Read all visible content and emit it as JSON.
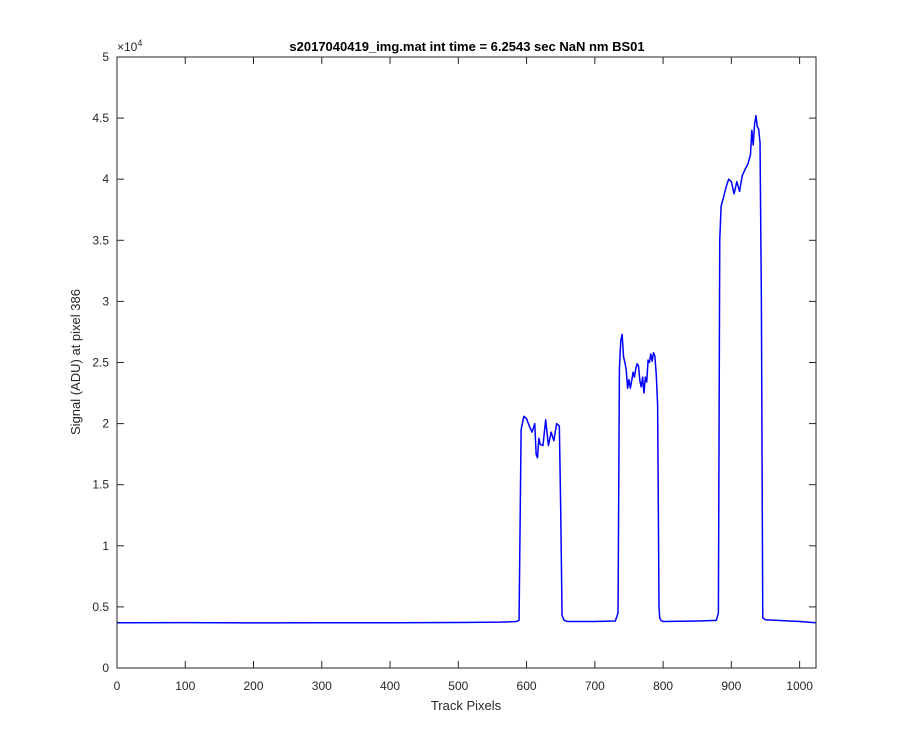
{
  "chart_data": {
    "type": "line",
    "title": "s2017040419_img.mat int time = 6.2543 sec  NaN nm BS01",
    "xlabel": "Track Pixels",
    "ylabel": "Signal (ADU) at pixel 386",
    "y_exponent_label": "×10",
    "y_exponent_power": "4",
    "xlim": [
      0,
      1024
    ],
    "ylim": [
      0,
      50000
    ],
    "xticks": [
      0,
      100,
      200,
      300,
      400,
      500,
      600,
      700,
      800,
      900,
      1000
    ],
    "xtick_labels": [
      "0",
      "100",
      "200",
      "300",
      "400",
      "500",
      "600",
      "700",
      "800",
      "900",
      "1000"
    ],
    "yticks": [
      0,
      5000,
      10000,
      15000,
      20000,
      25000,
      30000,
      35000,
      40000,
      45000,
      50000
    ],
    "ytick_labels": [
      "0",
      "0.5",
      "1",
      "1.5",
      "2",
      "2.5",
      "3",
      "3.5",
      "4",
      "4.5",
      "5"
    ],
    "grid": false,
    "line_color": "#0000ff",
    "series": [
      {
        "x": [
          0,
          100,
          200,
          300,
          400,
          500,
          560,
          585,
          589,
          592,
          596,
          600,
          604,
          608,
          612,
          614,
          616,
          618,
          620,
          624,
          628,
          632,
          636,
          640,
          644,
          648,
          650,
          652,
          655,
          660,
          700,
          730,
          734,
          736,
          738,
          740,
          742,
          744,
          746,
          748,
          750,
          752,
          754,
          756,
          758,
          760,
          762,
          764,
          766,
          768,
          770,
          772,
          774,
          776,
          778,
          780,
          782,
          784,
          786,
          788,
          790,
          792,
          794,
          795,
          797,
          800,
          850,
          878,
          881,
          883,
          885,
          888,
          892,
          896,
          900,
          904,
          908,
          912,
          916,
          920,
          924,
          928,
          930,
          932,
          934,
          936,
          938,
          940,
          942,
          944,
          946,
          950,
          1000,
          1024
        ],
        "y": [
          3700,
          3710,
          3690,
          3700,
          3700,
          3720,
          3750,
          3800,
          3900,
          19500,
          20600,
          20400,
          19800,
          19300,
          20000,
          17500,
          17200,
          18800,
          18300,
          18200,
          20300,
          18200,
          19300,
          18600,
          20000,
          19800,
          13000,
          4300,
          3900,
          3800,
          3800,
          3850,
          4500,
          24500,
          26800,
          27300,
          25500,
          25000,
          24400,
          22900,
          23600,
          22900,
          23500,
          24200,
          23800,
          24500,
          24900,
          24700,
          23500,
          23000,
          23800,
          22500,
          23800,
          23400,
          25200,
          25000,
          25700,
          25100,
          25800,
          25500,
          24000,
          21500,
          5000,
          4100,
          3900,
          3800,
          3850,
          3900,
          4500,
          35000,
          37800,
          38400,
          39300,
          40000,
          39800,
          38800,
          39800,
          39000,
          40300,
          40800,
          41200,
          42000,
          44000,
          42800,
          44500,
          45200,
          44300,
          44100,
          43000,
          30000,
          4100,
          3950,
          3800,
          3700
        ]
      }
    ]
  }
}
